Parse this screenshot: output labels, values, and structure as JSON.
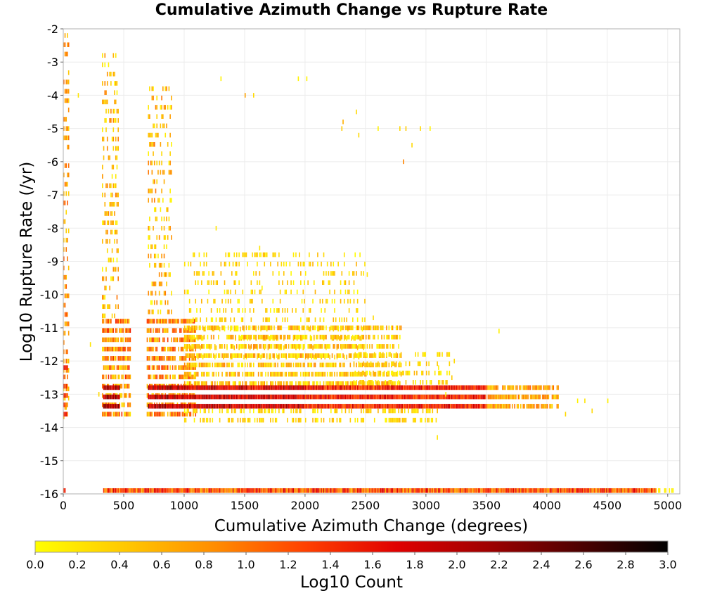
{
  "chart_data": {
    "type": "heatmap",
    "title": "Cumulative Azimuth Change vs Rupture Rate",
    "xlabel": "Cumulative Azimuth Change (degrees)",
    "ylabel": "Log10 Rupture Rate (/yr)",
    "xlim": [
      0,
      5100
    ],
    "ylim": [
      -16,
      -2
    ],
    "x_ticks": [
      "0",
      "500",
      "1000",
      "1500",
      "2000",
      "2500",
      "3000",
      "3500",
      "4000",
      "4500",
      "5000"
    ],
    "y_ticks": [
      "-2",
      "-3",
      "-4",
      "-5",
      "-6",
      "-7",
      "-8",
      "-9",
      "-10",
      "-11",
      "-12",
      "-13",
      "-14",
      "-15",
      "-16"
    ],
    "grid": true,
    "cell_width": 10,
    "cell_height": 0.14,
    "colorbar": {
      "label": "Log10 Count",
      "min": 0.0,
      "max": 3.0,
      "ticks": [
        "0.0",
        "0.2",
        "0.4",
        "0.6",
        "0.8",
        "1.0",
        "1.2",
        "1.4",
        "1.6",
        "1.8",
        "2.0",
        "2.2",
        "2.4",
        "2.6",
        "2.8",
        "3.0"
      ],
      "colors": [
        "#ffff00",
        "#ffc800",
        "#ff8c00",
        "#ff4000",
        "#e00000",
        "#a00000",
        "#500000",
        "#000000"
      ]
    },
    "bands": [
      {
        "x_from": 0,
        "x_to": 50,
        "y_from": -2.2,
        "y_to": -13.8,
        "density": 0.55,
        "value": [
          0.3,
          1.2
        ]
      },
      {
        "x_from": 0,
        "x_to": 40,
        "y_from": -12.2,
        "y_to": -13.8,
        "density": 0.9,
        "value": [
          0.8,
          1.7
        ]
      },
      {
        "x_from": 320,
        "x_to": 460,
        "y_from": -2.8,
        "y_to": -10.8,
        "density": 0.4,
        "value": [
          0.0,
          1.0
        ]
      },
      {
        "x_from": 320,
        "x_to": 560,
        "y_from": -10.8,
        "y_to": -13.8,
        "density": 0.85,
        "value": [
          0.2,
          1.5
        ]
      },
      {
        "x_from": 330,
        "x_to": 470,
        "y_from": -12.8,
        "y_to": -13.5,
        "density": 1.0,
        "value": [
          1.6,
          2.4
        ]
      },
      {
        "x_from": 700,
        "x_to": 900,
        "y_from": -3.8,
        "y_to": -10.8,
        "density": 0.35,
        "value": [
          0.0,
          1.0
        ]
      },
      {
        "x_from": 690,
        "x_to": 1100,
        "y_from": -10.8,
        "y_to": -13.8,
        "density": 0.8,
        "value": [
          0.2,
          1.4
        ]
      },
      {
        "x_from": 700,
        "x_to": 1000,
        "y_from": -12.8,
        "y_to": -13.5,
        "density": 1.0,
        "value": [
          1.6,
          2.4
        ]
      },
      {
        "x_from": 1000,
        "x_to": 2500,
        "y_from": -8.8,
        "y_to": -12.0,
        "density": 0.22,
        "value": [
          0.0,
          0.6
        ]
      },
      {
        "x_from": 1000,
        "x_to": 2800,
        "y_from": -11.0,
        "y_to": -12.8,
        "density": 0.7,
        "value": [
          0.0,
          0.9
        ]
      },
      {
        "x_from": 1000,
        "x_to": 2000,
        "y_from": -12.8,
        "y_to": -13.5,
        "density": 1.0,
        "value": [
          1.4,
          2.2
        ]
      },
      {
        "x_from": 2000,
        "x_to": 3500,
        "y_from": -12.8,
        "y_to": -13.5,
        "density": 1.0,
        "value": [
          1.1,
          1.9
        ]
      },
      {
        "x_from": 3500,
        "x_to": 4100,
        "y_from": -12.8,
        "y_to": -13.5,
        "density": 0.85,
        "value": [
          0.3,
          1.1
        ]
      },
      {
        "x_from": 1000,
        "x_to": 3100,
        "y_from": -13.5,
        "y_to": -14.0,
        "density": 0.4,
        "value": [
          0.0,
          0.6
        ]
      },
      {
        "x_from": 2400,
        "x_to": 3200,
        "y_from": -11.8,
        "y_to": -12.8,
        "density": 0.35,
        "value": [
          0.0,
          0.6
        ]
      },
      {
        "x_from": 0,
        "x_to": 20,
        "y_from": -15.9,
        "y_to": -16.1,
        "density": 1.0,
        "value": [
          1.0,
          1.6
        ]
      },
      {
        "x_from": 330,
        "x_to": 4900,
        "y_from": -15.9,
        "y_to": -16.1,
        "density": 1.0,
        "value": [
          0.6,
          1.8
        ]
      },
      {
        "x_from": 4900,
        "x_to": 5050,
        "y_from": -15.9,
        "y_to": -16.1,
        "density": 0.7,
        "value": [
          0.0,
          0.4
        ]
      }
    ],
    "cells": [
      [
        120,
        -4.0,
        0.2
      ],
      [
        220,
        -11.5,
        0.2
      ],
      [
        290,
        -13.0,
        0.3
      ],
      [
        1260,
        -8.0,
        0.2
      ],
      [
        1300,
        -3.5,
        0.1
      ],
      [
        1500,
        -4.0,
        0.7
      ],
      [
        1570,
        -4.0,
        0.3
      ],
      [
        1640,
        -9.8,
        0.1
      ],
      [
        1620,
        -8.6,
        0.2
      ],
      [
        1940,
        -3.5,
        0.1
      ],
      [
        2010,
        -3.5,
        0.1
      ],
      [
        2310,
        -4.8,
        0.6
      ],
      [
        2300,
        -5.0,
        0.4
      ],
      [
        2420,
        -4.5,
        0.3
      ],
      [
        2440,
        -5.2,
        0.3
      ],
      [
        2510,
        -9.4,
        0.2
      ],
      [
        2560,
        -10.7,
        0.3
      ],
      [
        2600,
        -5.0,
        0.1
      ],
      [
        2780,
        -5.0,
        0.3
      ],
      [
        2830,
        -5.0,
        0.4
      ],
      [
        2810,
        -6.0,
        0.9
      ],
      [
        2880,
        -5.5,
        0.3
      ],
      [
        2950,
        -5.0,
        0.3
      ],
      [
        3030,
        -5.0,
        0.1
      ],
      [
        2990,
        -11.8,
        0.2
      ],
      [
        3100,
        -12.2,
        0.1
      ],
      [
        3090,
        -14.3,
        0.2
      ],
      [
        3160,
        -13.0,
        0.1
      ],
      [
        3230,
        -12.0,
        0.3
      ],
      [
        3210,
        -12.5,
        0.4
      ],
      [
        3600,
        -11.1,
        0.1
      ],
      [
        4150,
        -13.6,
        0.3
      ],
      [
        4250,
        -13.2,
        0.1
      ],
      [
        4310,
        -13.2,
        0.2
      ],
      [
        4370,
        -13.5,
        0.3
      ],
      [
        4500,
        -13.2,
        0.1
      ]
    ]
  }
}
